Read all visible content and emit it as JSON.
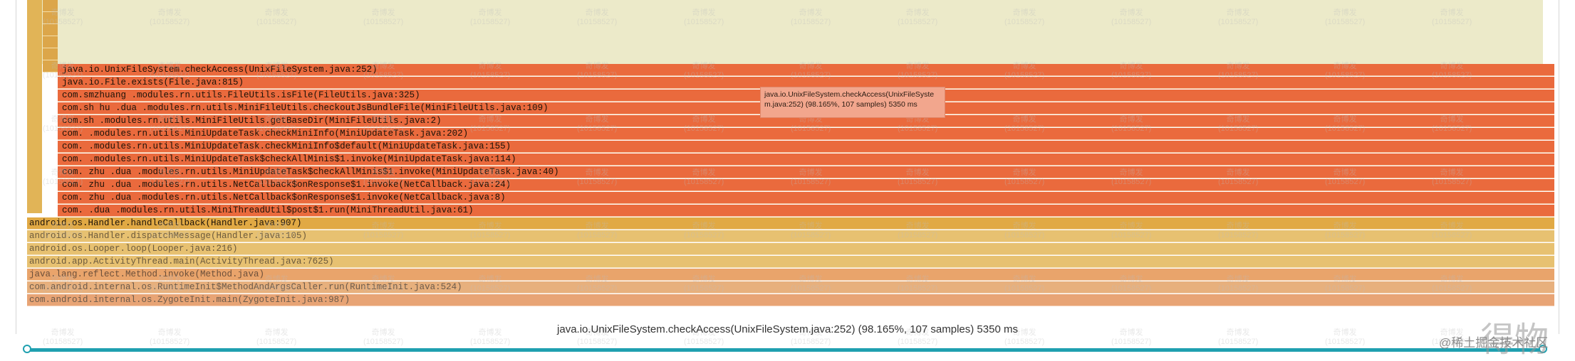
{
  "flame_rows": [
    {
      "label": "java.io.UnixFileSystem.checkAccess(UnixFileSystem.java:252)",
      "style": "hot",
      "indent": 2
    },
    {
      "label": "java.io.File.exists(File.java:815)",
      "style": "hot",
      "indent": 2
    },
    {
      "label": "com.smzhuang .modules.rn.utils.FileUtils.isFile(FileUtils.java:325)",
      "style": "hot",
      "indent": 2
    },
    {
      "label": "com.sh hu .dua .modules.rn.utils.MiniFileUtils.checkoutJsBundleFile(MiniFileUtils.java:109)",
      "style": "hot",
      "indent": 2
    },
    {
      "label": "com.sh .modules.rn.utils.MiniFileUtils.getBaseDir(MiniFileUtils.java:2)",
      "style": "hot",
      "indent": 2
    },
    {
      "label": "com. .modules.rn.utils.MiniUpdateTask.checkMiniInfo(MiniUpdateTask.java:202)",
      "style": "hot",
      "indent": 2
    },
    {
      "label": "com. .modules.rn.utils.MiniUpdateTask.checkMiniInfo$default(MiniUpdateTask.java:155)",
      "style": "hot",
      "indent": 2
    },
    {
      "label": "com. .modules.rn.utils.MiniUpdateTask$checkAllMinis$1.invoke(MiniUpdateTask.java:114)",
      "style": "hot",
      "indent": 2
    },
    {
      "label": "com. zhu .dua .modules.rn.utils.MiniUpdateTask$checkAllMinis$1.invoke(MiniUpdateTask.java:40)",
      "style": "hot",
      "indent": 2
    },
    {
      "label": "com. zhu .dua .modules.rn.utils.NetCallback$onResponse$1.invoke(NetCallback.java:24)",
      "style": "hot",
      "indent": 2
    },
    {
      "label": "com. zhu .dua .modules.rn.utils.NetCallback$onResponse$1.invoke(NetCallback.java:8)",
      "style": "hot",
      "indent": 2
    },
    {
      "label": "com. .dua .modules.rn.utils.MiniThreadUtil$post$1.run(MiniThreadUtil.java:61)",
      "style": "hot",
      "indent": 2
    },
    {
      "label": "android.os.Handler.handleCallback(Handler.java:907)",
      "style": "amber",
      "indent": 0
    },
    {
      "label": "android.os.Handler.dispatchMessage(Handler.java:105)",
      "style": "faint1",
      "indent": 0
    },
    {
      "label": "android.os.Looper.loop(Looper.java:216)",
      "style": "faint1",
      "indent": 0
    },
    {
      "label": "android.app.ActivityThread.main(ActivityThread.java:7625)",
      "style": "faint1",
      "indent": 0
    },
    {
      "label": "java.lang.reflect.Method.invoke(Method.java)",
      "style": "faint2",
      "indent": 0
    },
    {
      "label": "com.android.internal.os.RuntimeInit$MethodAndArgsCaller.run(RuntimeInit.java:524)",
      "style": "faint3",
      "indent": 0
    },
    {
      "label": "com.android.internal.os.ZygoteInit.main(ZygoteInit.java:987)",
      "style": "faint4",
      "indent": 0
    }
  ],
  "tooltip": {
    "text": "java.io.UnixFileSystem.checkAccess(UnixFileSystem.java:252) (98.165%, 107 samples) 5350 ms"
  },
  "selection_detail": "java.io.UnixFileSystem.checkAccess(UnixFileSystem.java:252) (98.165%, 107 samples) 5350 ms",
  "range_selection": {
    "start": 0.0,
    "end": 1.0
  },
  "watermark": {
    "line1": "奇博发",
    "line2": "(10158527)"
  },
  "logo": "得物",
  "credit": "@稀土掘金技术社区",
  "colors": {
    "hot": "#ea6a3d",
    "amber": "#e1a944",
    "idle": "#eceac9",
    "track": "#1fa0b0"
  }
}
